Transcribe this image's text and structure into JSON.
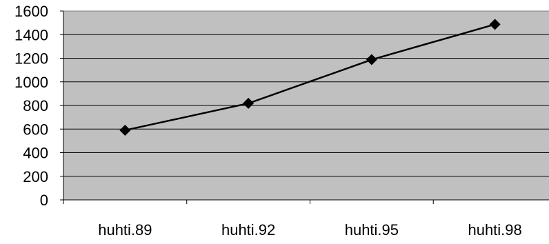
{
  "chart_data": {
    "type": "line",
    "categories": [
      "huhti.89",
      "huhti.92",
      "huhti.95",
      "huhti.98"
    ],
    "series": [
      {
        "values": [
          590,
          818,
          1188,
          1487
        ]
      }
    ],
    "ylim": [
      0,
      1600
    ],
    "yticks": [
      0,
      200,
      400,
      600,
      800,
      1000,
      1200,
      1400,
      1600
    ],
    "grid": true,
    "marker": "diamond",
    "colors": {
      "plot_background": "#c0c0c0",
      "gridline": "#000000",
      "line": "#000000",
      "marker": "#000000"
    }
  }
}
